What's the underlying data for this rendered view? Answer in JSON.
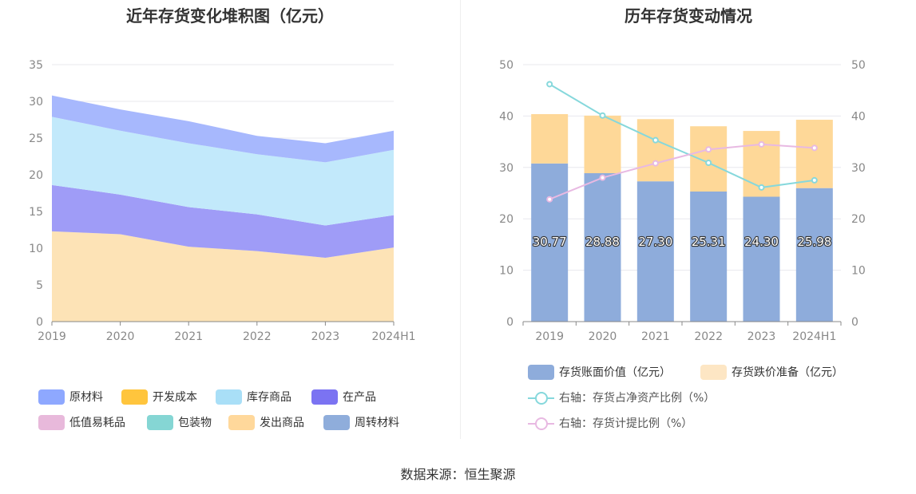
{
  "source_prefix": "数据来源：",
  "source_name": "恒生聚源",
  "chart_data": [
    {
      "type": "area",
      "stacked": true,
      "title": "近年存货变化堆积图（亿元）",
      "categories": [
        "2019",
        "2020",
        "2021",
        "2022",
        "2023",
        "2024H1"
      ],
      "ylim": [
        0,
        35
      ],
      "yticks": [
        0,
        5,
        10,
        15,
        20,
        25,
        30,
        35
      ],
      "grid": true,
      "legend_position": "bottom",
      "legend": [
        {
          "name": "原材料",
          "color": "#8ea8ff"
        },
        {
          "name": "开发成本",
          "color": "#ffc53d"
        },
        {
          "name": "库存商品",
          "color": "#a9dff7"
        },
        {
          "name": "在产品",
          "color": "#7b73f2"
        },
        {
          "name": "低值易耗品",
          "color": "#e8b9db"
        },
        {
          "name": "包装物",
          "color": "#85d6d4"
        },
        {
          "name": "发出商品",
          "color": "#ffd89b"
        },
        {
          "name": "周转材料",
          "color": "#8faddb"
        }
      ],
      "series": [
        {
          "name": "发出商品",
          "values": [
            12.3,
            11.9,
            10.2,
            9.6,
            8.7,
            10.1
          ],
          "fill": "#fde3b6"
        },
        {
          "name": "在产品",
          "values": [
            6.3,
            5.4,
            5.4,
            5.0,
            4.4,
            4.4
          ],
          "fill": "#9f9cf7"
        },
        {
          "name": "库存商品",
          "values": [
            9.3,
            8.7,
            8.7,
            8.2,
            8.6,
            8.9
          ],
          "fill": "#c2e9fb"
        },
        {
          "name": "原材料",
          "values": [
            2.9,
            2.9,
            3.0,
            2.5,
            2.6,
            2.6
          ],
          "fill": "#a7b8fd"
        }
      ]
    },
    {
      "type": "bar+line",
      "stacked": true,
      "title": "历年存货变动情况",
      "categories": [
        "2019",
        "2020",
        "2021",
        "2022",
        "2023",
        "2024H1"
      ],
      "ylim_left": [
        0,
        50
      ],
      "ylim_right": [
        0,
        50
      ],
      "yticks": [
        0,
        10,
        20,
        30,
        40,
        50
      ],
      "grid": true,
      "legend_position": "bottom",
      "bars": [
        {
          "name": "存货账面价值（亿元）",
          "values": [
            30.77,
            28.88,
            27.3,
            25.31,
            24.3,
            25.98
          ],
          "labels": [
            "30.77",
            "28.88",
            "27.30",
            "25.31",
            "24.30",
            "25.98"
          ],
          "color": "#8eacdb",
          "legend_color": "#8eacdb"
        },
        {
          "name": "存货跌价准备（亿元）",
          "values": [
            9.6,
            11.2,
            12.1,
            12.7,
            12.8,
            13.3
          ],
          "color": "#fed898",
          "legend_color": "#fde6c4"
        }
      ],
      "lines": [
        {
          "name": "右轴：存货占净资产比例（%）",
          "axis": "right",
          "values": [
            46.2,
            40.1,
            35.3,
            30.9,
            26.1,
            27.5
          ],
          "color": "#86d8dc"
        },
        {
          "name": "右轴：存货计提比例（%）",
          "axis": "right",
          "values": [
            23.8,
            28.0,
            30.8,
            33.5,
            34.5,
            33.8
          ],
          "color": "#e8b9e2"
        }
      ]
    }
  ]
}
